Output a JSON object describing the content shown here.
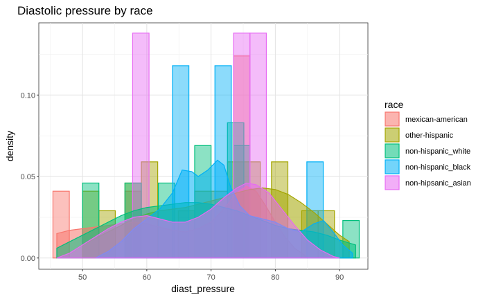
{
  "chart_data": {
    "type": "histogram",
    "title": "Diastolic pressure by race",
    "xlabel": "diast_pressure",
    "ylabel": "density",
    "xlim": [
      43.2,
      94.4
    ],
    "ylim": [
      -0.0069,
      0.1443
    ],
    "x_ticks": [
      50,
      60,
      70,
      80,
      90
    ],
    "x_tick_labels": [
      "50",
      "60",
      "70",
      "80",
      "90"
    ],
    "y_ticks": [
      0.0,
      0.05,
      0.1
    ],
    "y_tick_labels": [
      "0.00",
      "0.05",
      "0.10"
    ],
    "grid": true,
    "bin_width": 2.55,
    "legend_title": "race",
    "legend_position": "right",
    "series": [
      {
        "name": "mexican-american",
        "color": "#F8766D",
        "histogram": [
          {
            "x0": 45.4,
            "x1": 47.95,
            "density": 0.041
          },
          {
            "x0": 56.6,
            "x1": 59.15,
            "density": 0.041
          },
          {
            "x0": 73.5,
            "x1": 76.05,
            "density": 0.124
          }
        ],
        "density_curve": [
          [
            46.0,
            0.015
          ],
          [
            48.0,
            0.017
          ],
          [
            50.0,
            0.018
          ],
          [
            52.0,
            0.019
          ],
          [
            54.0,
            0.02
          ],
          [
            56.0,
            0.021
          ],
          [
            58.0,
            0.022
          ],
          [
            60.0,
            0.021
          ],
          [
            62.0,
            0.019
          ],
          [
            64.0,
            0.017
          ],
          [
            66.0,
            0.016
          ],
          [
            68.0,
            0.018
          ],
          [
            70.0,
            0.022
          ],
          [
            72.0,
            0.03
          ],
          [
            74.0,
            0.04
          ],
          [
            75.5,
            0.044
          ],
          [
            77.0,
            0.041
          ],
          [
            78.5,
            0.032
          ],
          [
            80.0,
            0.022
          ],
          [
            81.5,
            0.013
          ],
          [
            83.0,
            0.006
          ],
          [
            84.5,
            0.002
          ],
          [
            85.0,
            0.0
          ]
        ]
      },
      {
        "name": "other-hispanic",
        "color": "#A3A500",
        "histogram": [
          {
            "x0": 50.0,
            "x1": 52.55,
            "density": 0.041
          },
          {
            "x0": 52.55,
            "x1": 55.1,
            "density": 0.029
          },
          {
            "x0": 56.6,
            "x1": 59.15,
            "density": 0.046
          },
          {
            "x0": 59.15,
            "x1": 61.7,
            "density": 0.059
          },
          {
            "x0": 64.9,
            "x1": 67.45,
            "density": 0.029
          },
          {
            "x0": 67.45,
            "x1": 70.0,
            "density": 0.041
          },
          {
            "x0": 70.0,
            "x1": 72.55,
            "density": 0.041
          },
          {
            "x0": 72.55,
            "x1": 75.1,
            "density": 0.059
          },
          {
            "x0": 75.1,
            "x1": 77.65,
            "density": 0.059
          },
          {
            "x0": 79.4,
            "x1": 81.95,
            "density": 0.059
          },
          {
            "x0": 84.1,
            "x1": 86.65,
            "density": 0.029
          },
          {
            "x0": 86.65,
            "x1": 89.2,
            "density": 0.029
          }
        ],
        "density_curve": [
          [
            50.0,
            0.008
          ],
          [
            52.0,
            0.012
          ],
          [
            54.0,
            0.016
          ],
          [
            56.0,
            0.02
          ],
          [
            58.0,
            0.024
          ],
          [
            60.0,
            0.027
          ],
          [
            62.0,
            0.029
          ],
          [
            64.0,
            0.03
          ],
          [
            66.0,
            0.031
          ],
          [
            68.0,
            0.033
          ],
          [
            70.0,
            0.035
          ],
          [
            72.0,
            0.037
          ],
          [
            74.0,
            0.04
          ],
          [
            76.0,
            0.042
          ],
          [
            78.0,
            0.043
          ],
          [
            80.0,
            0.042
          ],
          [
            82.0,
            0.039
          ],
          [
            84.0,
            0.034
          ],
          [
            86.0,
            0.028
          ],
          [
            88.0,
            0.021
          ],
          [
            90.0,
            0.014
          ],
          [
            91.5,
            0.01
          ]
        ]
      },
      {
        "name": "non-hispanic_white",
        "color": "#00BF7D",
        "histogram": [
          {
            "x0": 50.0,
            "x1": 52.55,
            "density": 0.046
          },
          {
            "x0": 56.6,
            "x1": 59.15,
            "density": 0.046
          },
          {
            "x0": 61.8,
            "x1": 64.35,
            "density": 0.046
          },
          {
            "x0": 67.45,
            "x1": 70.0,
            "density": 0.069
          },
          {
            "x0": 72.55,
            "x1": 75.1,
            "density": 0.083
          },
          {
            "x0": 73.5,
            "x1": 76.05,
            "density": 0.069
          },
          {
            "x0": 90.5,
            "x1": 93.05,
            "density": 0.023
          }
        ],
        "density_curve": [
          [
            46.0,
            0.006
          ],
          [
            48.0,
            0.01
          ],
          [
            50.0,
            0.014
          ],
          [
            52.0,
            0.018
          ],
          [
            54.0,
            0.022
          ],
          [
            56.0,
            0.026
          ],
          [
            58.0,
            0.029
          ],
          [
            60.0,
            0.031
          ],
          [
            62.0,
            0.032
          ],
          [
            64.0,
            0.033
          ],
          [
            66.0,
            0.034
          ],
          [
            68.0,
            0.034
          ],
          [
            70.0,
            0.033
          ],
          [
            72.0,
            0.031
          ],
          [
            74.0,
            0.029
          ],
          [
            76.0,
            0.026
          ],
          [
            78.0,
            0.023
          ],
          [
            80.0,
            0.02
          ],
          [
            82.0,
            0.018
          ],
          [
            84.0,
            0.017
          ],
          [
            86.0,
            0.016
          ],
          [
            88.0,
            0.014
          ],
          [
            90.0,
            0.011
          ],
          [
            92.5,
            0.008
          ]
        ]
      },
      {
        "name": "non-hispanic_black",
        "color": "#00B0F6",
        "histogram": [
          {
            "x0": 64.0,
            "x1": 66.55,
            "density": 0.118
          },
          {
            "x0": 70.6,
            "x1": 73.15,
            "density": 0.118
          },
          {
            "x0": 84.9,
            "x1": 87.45,
            "density": 0.059
          }
        ],
        "density_curve": [
          [
            52.0,
            0.0
          ],
          [
            54.0,
            0.004
          ],
          [
            56.0,
            0.01
          ],
          [
            58.0,
            0.018
          ],
          [
            60.0,
            0.024
          ],
          [
            62.0,
            0.03
          ],
          [
            64.0,
            0.04
          ],
          [
            65.5,
            0.054
          ],
          [
            67.0,
            0.053
          ],
          [
            68.0,
            0.05
          ],
          [
            69.5,
            0.054
          ],
          [
            71.0,
            0.06
          ],
          [
            72.0,
            0.057
          ],
          [
            73.0,
            0.044
          ],
          [
            74.5,
            0.032
          ],
          [
            76.0,
            0.026
          ],
          [
            78.0,
            0.024
          ],
          [
            80.0,
            0.022
          ],
          [
            82.0,
            0.018
          ],
          [
            84.0,
            0.016
          ],
          [
            86.0,
            0.021
          ],
          [
            87.5,
            0.023
          ],
          [
            89.0,
            0.016
          ],
          [
            90.5,
            0.008
          ],
          [
            92.0,
            0.003
          ]
        ]
      },
      {
        "name": "non-hipsanic_asian",
        "color": "#E76BF3",
        "histogram": [
          {
            "x0": 57.8,
            "x1": 60.35,
            "density": 0.138
          },
          {
            "x0": 73.5,
            "x1": 76.05,
            "density": 0.138
          },
          {
            "x0": 76.05,
            "x1": 78.6,
            "density": 0.138
          }
        ],
        "density_curve": [
          [
            46.0,
            0.0
          ],
          [
            48.0,
            0.003
          ],
          [
            50.0,
            0.008
          ],
          [
            52.0,
            0.013
          ],
          [
            54.0,
            0.018
          ],
          [
            56.0,
            0.022
          ],
          [
            58.0,
            0.025
          ],
          [
            60.0,
            0.026
          ],
          [
            62.0,
            0.024
          ],
          [
            64.0,
            0.022
          ],
          [
            66.0,
            0.022
          ],
          [
            68.0,
            0.025
          ],
          [
            70.0,
            0.03
          ],
          [
            72.0,
            0.037
          ],
          [
            74.0,
            0.043
          ],
          [
            75.5,
            0.046
          ],
          [
            77.0,
            0.045
          ],
          [
            79.0,
            0.04
          ],
          [
            81.0,
            0.03
          ],
          [
            83.0,
            0.02
          ],
          [
            85.0,
            0.011
          ],
          [
            87.0,
            0.005
          ],
          [
            89.0,
            0.001
          ],
          [
            90.0,
            0.0
          ]
        ]
      }
    ]
  }
}
